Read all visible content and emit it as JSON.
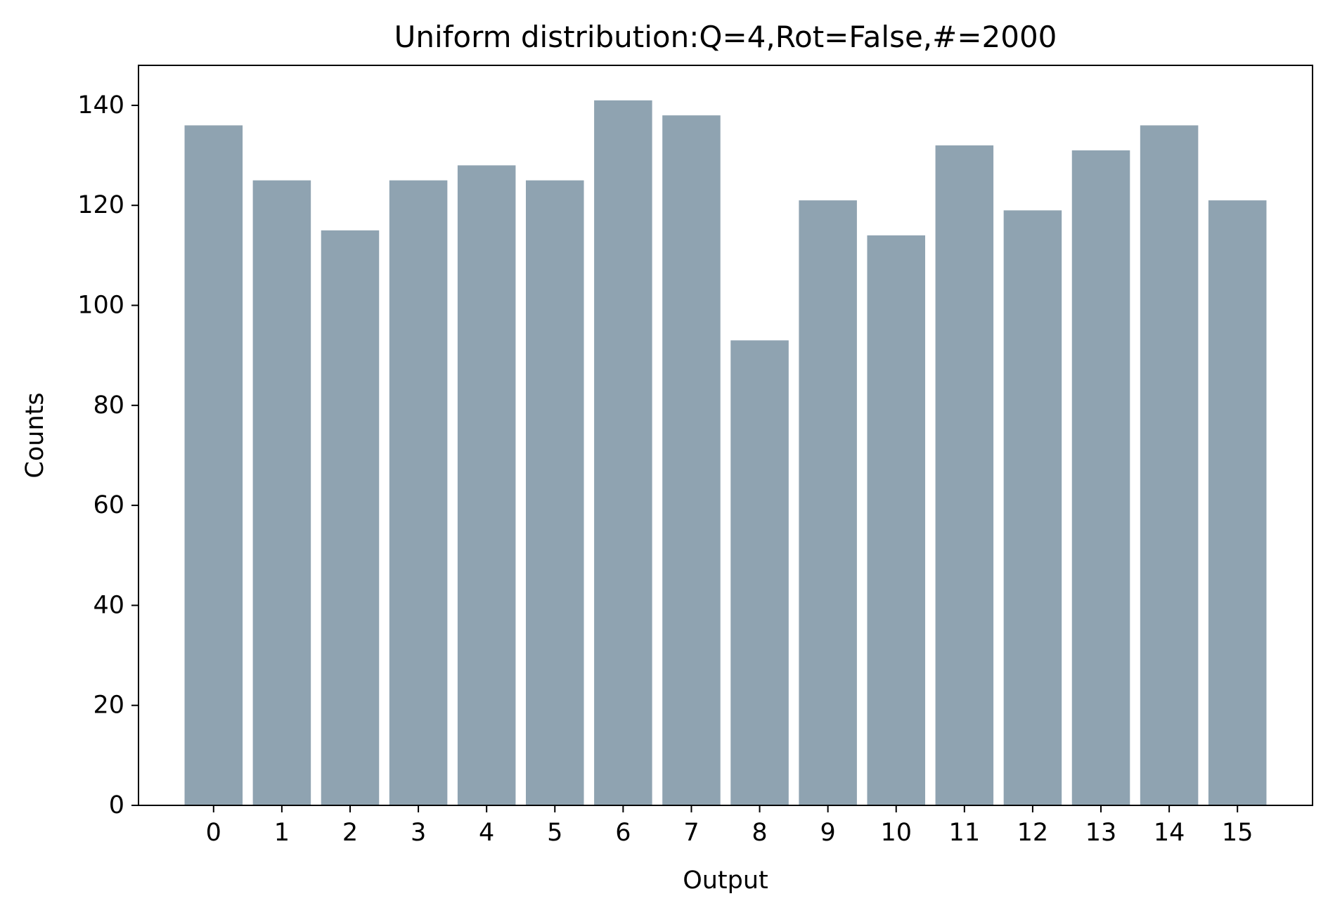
{
  "chart_data": {
    "type": "bar",
    "title": "Uniform distribution:Q=4,Rot=False,#=2000",
    "xlabel": "Output",
    "ylabel": "Counts",
    "categories": [
      "0",
      "1",
      "2",
      "3",
      "4",
      "5",
      "6",
      "7",
      "8",
      "9",
      "10",
      "11",
      "12",
      "13",
      "14",
      "15"
    ],
    "values": [
      136,
      125,
      115,
      125,
      128,
      125,
      141,
      138,
      93,
      121,
      114,
      132,
      119,
      131,
      136,
      121
    ],
    "ylim": [
      0,
      148
    ],
    "yticks": [
      0,
      20,
      40,
      60,
      80,
      100,
      120,
      140
    ],
    "grid": false,
    "bar_color": "#8fa3b1"
  }
}
